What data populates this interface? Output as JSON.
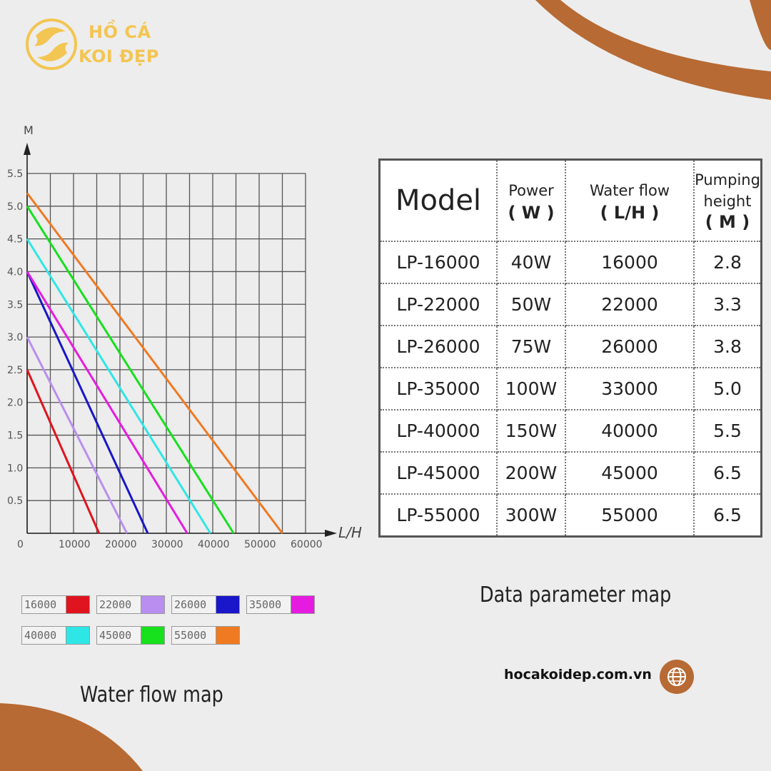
{
  "brand": {
    "line1": "HỒ CÁ",
    "line2": "KOI ĐẸP",
    "logo_icon": "koi-fish-logo-icon",
    "color": "#f3c552"
  },
  "accent_color": "#b76a33",
  "chart_data": {
    "type": "line",
    "ylabel": "M",
    "xlabel": "L/H",
    "xlim": [
      0,
      60000
    ],
    "ylim": [
      0,
      5.5
    ],
    "x_ticks": [
      "0",
      "10000",
      "20000",
      "30000",
      "40000",
      "50000",
      "60000"
    ],
    "y_ticks": [
      "5.5",
      "5.0",
      "4.5",
      "4.0",
      "3.5",
      "3.0",
      "2.5",
      "2.0",
      "1.5",
      "1.0",
      "0.5"
    ],
    "grid": true,
    "legend_position": "bottom",
    "series": [
      {
        "name": "16000",
        "color": "#e0141e",
        "points": [
          [
            0,
            2.5
          ],
          [
            15500,
            0
          ]
        ]
      },
      {
        "name": "22000",
        "color": "#b98ef0",
        "points": [
          [
            0,
            3.0
          ],
          [
            21500,
            0
          ]
        ]
      },
      {
        "name": "26000",
        "color": "#1a16c9",
        "points": [
          [
            0,
            4.0
          ],
          [
            26000,
            0
          ]
        ]
      },
      {
        "name": "35000",
        "color": "#e51ce0",
        "points": [
          [
            0,
            4.0
          ],
          [
            34500,
            0
          ]
        ]
      },
      {
        "name": "40000",
        "color": "#2fe6e6",
        "points": [
          [
            0,
            4.5
          ],
          [
            39500,
            0
          ]
        ]
      },
      {
        "name": "45000",
        "color": "#17e01d",
        "points": [
          [
            0,
            5.0
          ],
          [
            44500,
            0
          ]
        ]
      },
      {
        "name": "55000",
        "color": "#f07a22",
        "points": [
          [
            0,
            5.2
          ],
          [
            55000,
            0
          ]
        ]
      }
    ]
  },
  "chart_caption": "Water flow map",
  "table": {
    "caption": "Data parameter map",
    "headers": {
      "model": "Model",
      "power": "Power",
      "power_unit": "( W )",
      "flow": "Water flow",
      "flow_unit": "( L/H )",
      "height_1": "Pumping",
      "height_2": "height",
      "height_unit": "( M )"
    },
    "rows": [
      [
        "LP-16000",
        "40W",
        "16000",
        "2.8"
      ],
      [
        "LP-22000",
        "50W",
        "22000",
        "3.3"
      ],
      [
        "LP-26000",
        "75W",
        "26000",
        "3.8"
      ],
      [
        "LP-35000",
        "100W",
        "33000",
        "5.0"
      ],
      [
        "LP-40000",
        "150W",
        "40000",
        "5.5"
      ],
      [
        "LP-45000",
        "200W",
        "45000",
        "6.5"
      ],
      [
        "LP-55000",
        "300W",
        "55000",
        "6.5"
      ]
    ]
  },
  "footer": {
    "website": "hocakoidep.com.vn",
    "web_icon": "globe-icon"
  }
}
